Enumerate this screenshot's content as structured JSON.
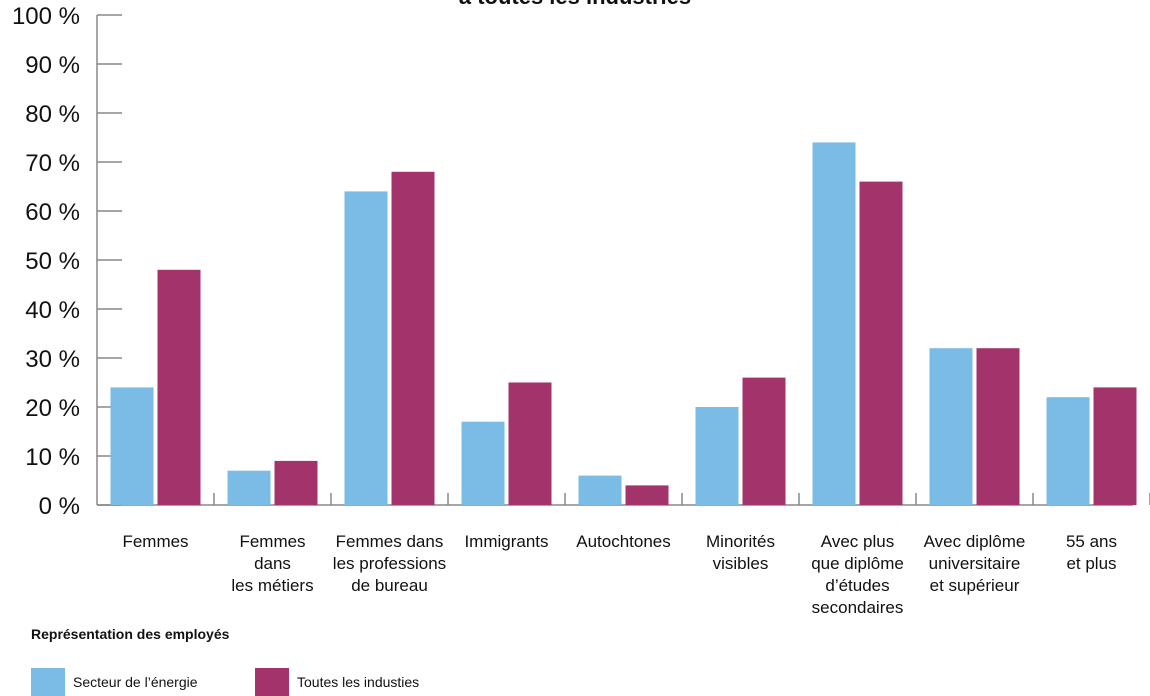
{
  "chart_data": {
    "type": "bar",
    "title": "à toutes les industries",
    "categories": [
      [
        "Femmes"
      ],
      [
        "Femmes",
        "dans",
        "les métiers"
      ],
      [
        "Femmes dans",
        "les professions",
        "de bureau"
      ],
      [
        "Immigrants"
      ],
      [
        "Autochtones"
      ],
      [
        "Minorités",
        "visibles"
      ],
      [
        "Avec plus",
        "que diplôme",
        "d’études",
        "secondaires"
      ],
      [
        "Avec diplôme",
        "universitaire",
        "et supérieur"
      ],
      [
        "55 ans",
        "et plus"
      ]
    ],
    "series": [
      {
        "name": "Secteur de l’énergie",
        "color": "#7ABCE6",
        "values": [
          24,
          7,
          64,
          17,
          6,
          20,
          74,
          32,
          22
        ]
      },
      {
        "name": "Toutes les industies",
        "color": "#A3336B",
        "values": [
          48,
          9,
          68,
          25,
          4,
          26,
          66,
          32,
          24
        ]
      }
    ],
    "ylim": [
      0,
      100
    ],
    "yticks": [
      "0 %",
      "10 %",
      "20 %",
      "30 %",
      "40 %",
      "50 %",
      "60 %",
      "70 %",
      "80 %",
      "90 %",
      "100 %"
    ],
    "legend_title": "Représentation des employés",
    "legend_position": "bottom-left",
    "grid": false
  }
}
